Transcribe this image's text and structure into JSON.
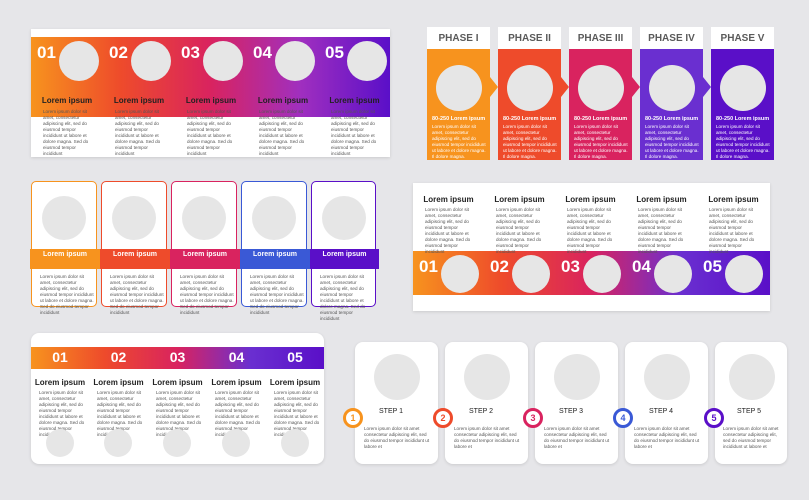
{
  "colors": [
    "#f7931e",
    "#ee4b2b",
    "#d9235f",
    "#6a2fd0",
    "#5a0fc8"
  ],
  "tl": {
    "items": [
      {
        "num": "01",
        "title": "Lorem ipsum",
        "text": "Lorem ipsum dolor sit amet, consectetur adipiscing elit, sed do eiusmod tempor incididunt ut labore et dolore magna. Sed do eiusmod tempor incididunt"
      },
      {
        "num": "02",
        "title": "Lorem ipsum",
        "text": "Lorem ipsum dolor sit amet, consectetur adipiscing elit, sed do eiusmod tempor incididunt ut labore et dolore magna. Sed do eiusmod tempor incididunt"
      },
      {
        "num": "03",
        "title": "Lorem ipsum",
        "text": "Lorem ipsum dolor sit amet, consectetur adipiscing elit, sed do eiusmod tempor incididunt ut labore et dolore magna. Sed do eiusmod tempor incididunt"
      },
      {
        "num": "04",
        "title": "Lorem ipsum",
        "text": "Lorem ipsum dolor sit amet, consectetur adipiscing elit, sed do eiusmod tempor incididunt ut labore et dolore magna. Sed do eiusmod tempor incididunt"
      },
      {
        "num": "05",
        "title": "Lorem ipsum",
        "text": "Lorem ipsum dolor sit amet, consectetur adipiscing elit, sed do eiusmod tempor incididunt ut labore et dolore magna. Sed do eiusmod tempor incididunt"
      }
    ]
  },
  "tr": {
    "items": [
      {
        "phase": "PHASE I",
        "title": "80-250 Lorem ipsum",
        "text": "Lorem ipsum dolor sit amet, consectetur adipiscing elit, sed do eiusmod tempor incididunt ut labore et dolore magna. Il dolore magna."
      },
      {
        "phase": "PHASE II",
        "title": "80-250 Lorem ipsum",
        "text": "Lorem ipsum dolor sit amet, consectetur adipiscing elit, sed do eiusmod tempor incididunt ut labore et dolore magna. Il dolore magna."
      },
      {
        "phase": "PHASE III",
        "title": "80-250 Lorem ipsum",
        "text": "Lorem ipsum dolor sit amet, consectetur adipiscing elit, sed do eiusmod tempor incididunt ut labore et dolore magna. Il dolore magna."
      },
      {
        "phase": "PHASE IV",
        "title": "80-250 Lorem ipsum",
        "text": "Lorem ipsum dolor sit amet, consectetur adipiscing elit, sed do eiusmod tempor incididunt ut labore et dolore magna. Il dolore magna."
      },
      {
        "phase": "PHASE V",
        "title": "80-250 Lorem ipsum",
        "text": "Lorem ipsum dolor sit amet, consectetur adipiscing elit, sed do eiusmod tempor incididunt ut labore et dolore magna. Il dolore magna."
      }
    ]
  },
  "ml": {
    "items": [
      {
        "title": "Lorem ipsum",
        "text": "Lorem ipsum dolor sit amet, consectetur adipiscing elit, sed do eiusmod tempor incididunt ut labore et dolore magna. Sed do eiusmod tempor incididunt"
      },
      {
        "title": "Lorem ipsum",
        "text": "Lorem ipsum dolor sit amet, consectetur adipiscing elit, sed do eiusmod tempor incididunt ut labore et dolore magna. Sed do eiusmod tempor incididunt"
      },
      {
        "title": "Lorem ipsum",
        "text": "Lorem ipsum dolor sit amet, consectetur adipiscing elit, sed do eiusmod tempor incididunt ut labore et dolore magna. Sed do eiusmod tempor incididunt"
      },
      {
        "title": "Lorem ipsum",
        "text": "Lorem ipsum dolor sit amet, consectetur adipiscing elit, sed do eiusmod tempor incididunt ut labore et dolore magna. Sed do eiusmod tempor incididunt"
      },
      {
        "title": "Lorem ipsum",
        "text": "Lorem ipsum dolor sit amet, consectetur adipiscing elit, sed do eiusmod tempor incididunt ut labore et dolore magna. Sed do eiusmod tempor incididunt"
      }
    ]
  },
  "mr": {
    "items": [
      {
        "num": "01",
        "title": "Lorem ipsum",
        "text": "Lorem ipsum dolor sit amet, consectetur adipiscing elit, sed do eiusmod tempor incididunt ut labore et dolore magna. Sed do eiusmod tempor incididunt"
      },
      {
        "num": "02",
        "title": "Lorem ipsum",
        "text": "Lorem ipsum dolor sit amet, consectetur adipiscing elit, sed do eiusmod tempor incididunt ut labore et dolore magna. Sed do eiusmod tempor incididunt"
      },
      {
        "num": "03",
        "title": "Lorem ipsum",
        "text": "Lorem ipsum dolor sit amet, consectetur adipiscing elit, sed do eiusmod tempor incididunt ut labore et dolore magna. Sed do eiusmod tempor incididunt"
      },
      {
        "num": "04",
        "title": "Lorem ipsum",
        "text": "Lorem ipsum dolor sit amet, consectetur adipiscing elit, sed do eiusmod tempor incididunt ut labore et dolore magna. Sed do eiusmod tempor incididunt"
      },
      {
        "num": "05",
        "title": "Lorem ipsum",
        "text": "Lorem ipsum dolor sit amet, consectetur adipiscing elit, sed do eiusmod tempor incididunt ut labore et dolore magna. Sed do eiusmod tempor incididunt"
      }
    ]
  },
  "bl": {
    "items": [
      {
        "num": "01",
        "title": "Lorem ipsum",
        "text": "Lorem ipsum dolor sit amet, consectetur adipiscing elit, sed do eiusmod tempor incididunt ut labore et dolore magna. Sed do eiusmod tempor incididunt"
      },
      {
        "num": "02",
        "title": "Lorem ipsum",
        "text": "Lorem ipsum dolor sit amet, consectetur adipiscing elit, sed do eiusmod tempor incididunt ut labore et dolore magna. Sed do eiusmod tempor incididunt"
      },
      {
        "num": "03",
        "title": "Lorem ipsum",
        "text": "Lorem ipsum dolor sit amet, consectetur adipiscing elit, sed do eiusmod tempor incididunt ut labore et dolore magna. Sed do eiusmod tempor incididunt"
      },
      {
        "num": "04",
        "title": "Lorem ipsum",
        "text": "Lorem ipsum dolor sit amet, consectetur adipiscing elit, sed do eiusmod tempor incididunt ut labore et dolore magna. Sed do eiusmod tempor incididunt"
      },
      {
        "num": "05",
        "title": "Lorem ipsum",
        "text": "Lorem ipsum dolor sit amet, consectetur adipiscing elit, sed do eiusmod tempor incididunt ut labore et dolore magna. Sed do eiusmod tempor incididunt"
      }
    ]
  },
  "br": {
    "items": [
      {
        "num": "1",
        "label": "STEP 1",
        "text": "Lorem ipsum dolor sit amet consectetur adipiscing elit, sed do eiusmod tempor incididunt ut labore et"
      },
      {
        "num": "2",
        "label": "STEP 2",
        "text": "Lorem ipsum dolor sit amet consectetur adipiscing elit, sed do eiusmod tempor incididunt ut labore et"
      },
      {
        "num": "3",
        "label": "STEP 3",
        "text": "Lorem ipsum dolor sit amet consectetur adipiscing elit, sed do eiusmod tempor incididunt ut labore et"
      },
      {
        "num": "4",
        "label": "STEP 4",
        "text": "Lorem ipsum dolor sit amet consectetur adipiscing elit, sed do eiusmod tempor incididunt ut labore et"
      },
      {
        "num": "5",
        "label": "STEP 5",
        "text": "Lorem ipsum dolor sit amet consectetur adipiscing elit, sed do eiusmod tempor incididunt ut labore et"
      }
    ]
  }
}
